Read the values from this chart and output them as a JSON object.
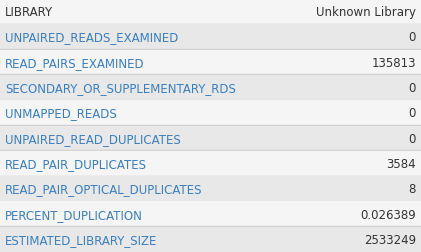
{
  "rows": [
    {
      "label": "LIBRARY",
      "value": "Unknown Library",
      "header": true
    },
    {
      "label": "UNPAIRED_READS_EXAMINED",
      "value": "0",
      "header": false
    },
    {
      "label": "READ_PAIRS_EXAMINED",
      "value": "135813",
      "header": false
    },
    {
      "label": "SECONDARY_OR_SUPPLEMENTARY_RDS",
      "value": "0",
      "header": false
    },
    {
      "label": "UNMAPPED_READS",
      "value": "0",
      "header": false
    },
    {
      "label": "UNPAIRED_READ_DUPLICATES",
      "value": "0",
      "header": false
    },
    {
      "label": "READ_PAIR_DUPLICATES",
      "value": "3584",
      "header": false
    },
    {
      "label": "READ_PAIR_OPTICAL_DUPLICATES",
      "value": "8",
      "header": false
    },
    {
      "label": "PERCENT_DUPLICATION",
      "value": "0.026389",
      "header": false
    },
    {
      "label": "ESTIMATED_LIBRARY_SIZE",
      "value": "2533249",
      "header": false
    }
  ],
  "bg_odd": "#e8e8e8",
  "bg_even": "#f5f5f5",
  "text_color": "#3a7fbf",
  "header_text_color": "#333333",
  "top_bar_color": "#aaaaaa",
  "separator_color": "#cccccc",
  "font_size": 8.5
}
